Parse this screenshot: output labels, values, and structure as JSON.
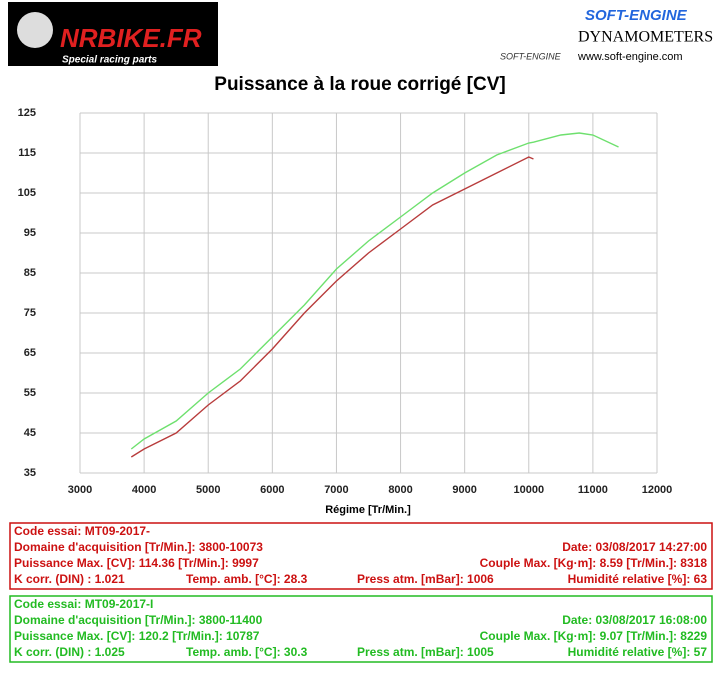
{
  "header": {
    "left_logo": "NRBIKE.FR",
    "left_tagline": "Special racing parts",
    "right_brand": "SOFT-ENGINE",
    "right_small": "SOFT-ENGINE",
    "right_title": "DYNAMOMETERS",
    "right_url": "www.soft-engine.com"
  },
  "chart_data": {
    "type": "line",
    "title": "Puissance à la roue corrigé [CV]",
    "x_label": "Régime [Tr/Min.]",
    "x": [
      3800,
      4000,
      4500,
      5000,
      5500,
      6000,
      6500,
      7000,
      7500,
      8000,
      8500,
      9000,
      9500,
      10000,
      10073,
      10500,
      10787,
      11000,
      11400
    ],
    "series": [
      {
        "color": "#b83c3c",
        "values": [
          39,
          41,
          45,
          52,
          58,
          66,
          75,
          83,
          90,
          96,
          102,
          106,
          110,
          114,
          113.5,
          null,
          null,
          null,
          null
        ]
      },
      {
        "color": "#6ee06e",
        "values": [
          41,
          43.5,
          48,
          55,
          61,
          69,
          77,
          86,
          93,
          99,
          105,
          110,
          114.5,
          117.5,
          117.7,
          119.5,
          120,
          119.5,
          116.5
        ]
      }
    ],
    "xlim": [
      3000,
      12000
    ],
    "xticks": [
      3000,
      4000,
      5000,
      6000,
      7000,
      8000,
      9000,
      10000,
      11000,
      12000
    ],
    "ylim": [
      35,
      125
    ],
    "yticks": [
      35,
      45,
      55,
      65,
      75,
      85,
      95,
      105,
      115,
      125
    ],
    "grid": true
  },
  "runs": [
    {
      "color": "#cc1111",
      "rows": [
        [
          "Code essai: MT09-2017-"
        ],
        [
          "Domaine d'acquisition [Tr/Min.]: 3800-10073",
          "Date: 03/08/2017   14:27:00"
        ],
        [
          "Puissance Max. [CV]: 114.36   [Tr/Min.]: 9997",
          "Couple Max. [Kg·m]: 8.59   [Tr/Min.]: 8318"
        ],
        [
          "K corr. (DIN) : 1.021",
          "Temp. amb. [°C]: 28.3",
          "Press atm. [mBar]: 1006",
          "Humidité relative [%]: 63"
        ]
      ]
    },
    {
      "color": "#22bb22",
      "rows": [
        [
          "Code essai: MT09-2017-I"
        ],
        [
          "Domaine d'acquisition [Tr/Min.]: 3800-11400",
          "Date: 03/08/2017   16:08:00"
        ],
        [
          "Puissance Max. [CV]: 120.2   [Tr/Min.]: 10787",
          "Couple Max. [Kg·m]: 9.07   [Tr/Min.]: 8229"
        ],
        [
          "K corr. (DIN) : 1.025",
          "Temp. amb. [°C]: 30.3",
          "Press atm. [mBar]: 1005",
          "Humidité relative [%]: 57"
        ]
      ]
    }
  ]
}
